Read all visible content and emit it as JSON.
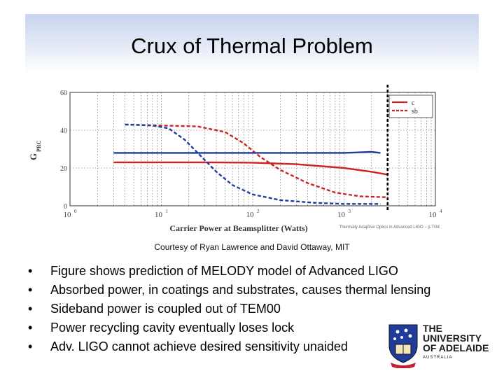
{
  "slide": {
    "title": "Crux of Thermal Problem",
    "credit": "Courtesy of Ryan Lawrence and David Ottaway, MIT",
    "bullets": [
      "Figure shows prediction of MELODY model of Advanced LIGO",
      "Absorbed power, in coatings and substrates, causes thermal lensing",
      "Sideband power is coupled out of TEM00",
      "Power recycling cavity eventually loses lock",
      "Adv. LIGO cannot achieve desired sensitivity unaided"
    ],
    "bullet_glyph": "•",
    "logo": {
      "line1": "THE UNIVERSITY",
      "line2": "OF ADELAIDE",
      "line3": "AUSTRALIA"
    }
  },
  "chart_data": {
    "type": "line",
    "xlabel": "Carrier Power at Beamsplitter (Watts)",
    "ylabel": "G",
    "ylabel_sub": "PRC",
    "x_scale": "log",
    "xlim": [
      1,
      10000
    ],
    "ylim": [
      0,
      60
    ],
    "yticks": [
      "0",
      "20",
      "40",
      "60"
    ],
    "xtick_base": "10",
    "xtick_exps": [
      "0",
      "1",
      "2",
      "3",
      "4"
    ],
    "grid": true,
    "legend_position": "top-right",
    "footnote": "Thermally Adaptive Optics in Advanced LIGO – p.7/34",
    "colors": {
      "red": "#cc2222",
      "blue": "#1f3c9a"
    },
    "series": [
      {
        "name": "c",
        "style": "solid",
        "color": "red",
        "points": [
          [
            3,
            23
          ],
          [
            10,
            23
          ],
          [
            30,
            23
          ],
          [
            100,
            22.8
          ],
          [
            300,
            22
          ],
          [
            1000,
            20
          ],
          [
            2000,
            18
          ],
          [
            3000,
            16.5
          ]
        ]
      },
      {
        "name": "sb",
        "style": "dashed",
        "color": "red",
        "points": [
          [
            4,
            43
          ],
          [
            10,
            42.5
          ],
          [
            25,
            42
          ],
          [
            50,
            39
          ],
          [
            80,
            33
          ],
          [
            120,
            26
          ],
          [
            200,
            19
          ],
          [
            400,
            12
          ],
          [
            800,
            7
          ],
          [
            1500,
            5
          ],
          [
            3000,
            4.5
          ]
        ]
      },
      {
        "name": "",
        "style": "solid",
        "color": "blue",
        "points": [
          [
            3,
            28
          ],
          [
            10,
            28
          ],
          [
            30,
            28
          ],
          [
            100,
            28
          ],
          [
            300,
            28
          ],
          [
            1000,
            28
          ],
          [
            2000,
            28.5
          ],
          [
            2500,
            28
          ]
        ]
      },
      {
        "name": "",
        "style": "dashed",
        "color": "blue",
        "points": [
          [
            4,
            43
          ],
          [
            8,
            42.5
          ],
          [
            12,
            41
          ],
          [
            18,
            35
          ],
          [
            25,
            28
          ],
          [
            40,
            18
          ],
          [
            60,
            11
          ],
          [
            100,
            6
          ],
          [
            200,
            3
          ],
          [
            500,
            1.5
          ],
          [
            1000,
            1
          ],
          [
            2500,
            1
          ]
        ]
      }
    ],
    "marker_x": 3000
  }
}
